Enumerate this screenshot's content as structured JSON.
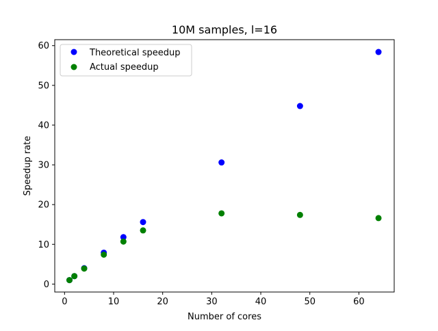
{
  "chart_data": {
    "type": "scatter",
    "title": "10M samples, l=16",
    "xlabel": "Number of cores",
    "ylabel": "Speedup rate",
    "xlim": [
      -2,
      67.2
    ],
    "ylim": [
      -2,
      61.5
    ],
    "xticks": [
      0,
      10,
      20,
      30,
      40,
      50,
      60
    ],
    "yticks": [
      0,
      10,
      20,
      30,
      40,
      50,
      60
    ],
    "grid": false,
    "legend_position": "top-left",
    "series": [
      {
        "name": "Theoretical speedup",
        "color": "#0000ff",
        "x": [
          1,
          2,
          4,
          8,
          12,
          16,
          32,
          48,
          64
        ],
        "y": [
          1.0,
          2.0,
          4.0,
          7.9,
          11.8,
          15.6,
          30.6,
          44.8,
          58.4
        ]
      },
      {
        "name": "Actual speedup",
        "color": "#008000",
        "x": [
          1,
          2,
          4,
          8,
          12,
          16,
          32,
          48,
          64
        ],
        "y": [
          1.0,
          2.0,
          3.9,
          7.4,
          10.7,
          13.5,
          17.8,
          17.4,
          16.6
        ]
      }
    ]
  }
}
